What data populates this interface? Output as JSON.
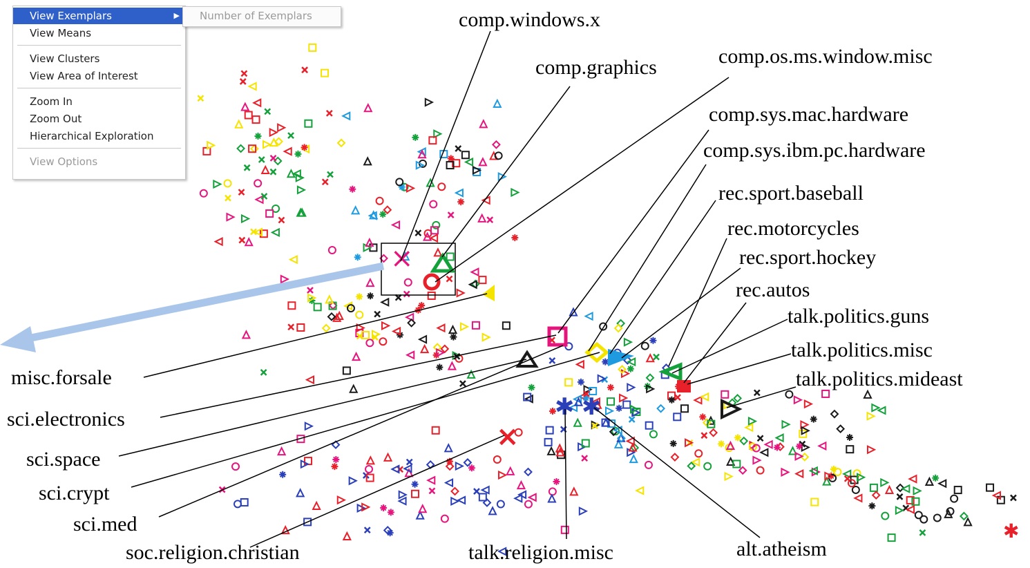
{
  "context_menu": {
    "items": [
      {
        "label": "View Exemplars",
        "active": true,
        "has_submenu": true
      },
      {
        "label": "View Means"
      },
      {
        "label": "View Clusters"
      },
      {
        "label": "View Area of Interest"
      },
      {
        "label": "Zoom In"
      },
      {
        "label": "Zoom Out"
      },
      {
        "label": "Hierarchical Exploration"
      },
      {
        "label": "View Options",
        "disabled": true
      }
    ],
    "submenu": {
      "label": "Number of Exemplars",
      "disabled": true
    }
  },
  "labels": {
    "comp_windows_x": "comp.windows.x",
    "comp_graphics": "comp.graphics",
    "comp_os_ms_window_misc": "comp.os.ms.window.misc",
    "comp_sys_mac_hardware": "comp.sys.mac.hardware",
    "comp_sys_ibm_pc_hardware": "comp.sys.ibm.pc.hardware",
    "rec_sport_baseball": "rec.sport.baseball",
    "rec_motorcycles": "rec.motorcycles",
    "rec_sport_hockey": "rec.sport.hockey",
    "rec_autos": "rec.autos",
    "talk_politics_guns": "talk.politics.guns",
    "talk_politics_misc": "talk.politics.misc",
    "talk_politics_mideast": "talk.politics.mideast",
    "misc_forsale": "misc.forsale",
    "sci_electronics": "sci.electronics",
    "sci_space": "sci.space",
    "sci_crypt": "sci.crypt",
    "sci_med": "sci.med",
    "soc_religion_christian": "soc.religion.christian",
    "talk_religion_misc": "talk.religion.misc",
    "alt_atheism": "alt.atheism"
  },
  "colors": {
    "red": "#e8202a",
    "pink": "#e6157e",
    "green": "#14a03a",
    "yellow": "#f5e400",
    "cyan": "#1e9be0",
    "black": "#1a1a1a",
    "blue": "#2a3fb8",
    "arrow": "#a9c6ea",
    "menu_highlight": "#2f5fc8"
  }
}
